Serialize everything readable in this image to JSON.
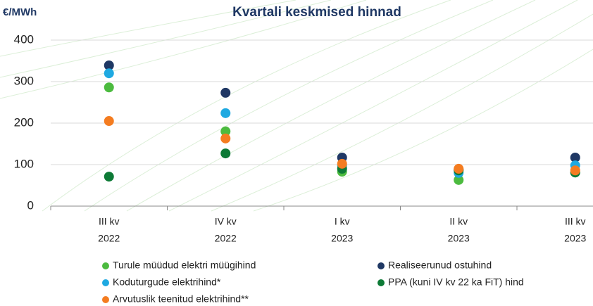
{
  "chart_data": {
    "type": "scatter",
    "title": "Kvartali keskmised hinnad",
    "y_label": "€/MWh",
    "categories": [
      [
        "III kv",
        "2022"
      ],
      [
        "IV kv",
        "2022"
      ],
      [
        "I kv",
        "2023"
      ],
      [
        "II kv",
        "2023"
      ],
      [
        "III kv",
        "2023"
      ]
    ],
    "ylim": [
      0,
      400
    ],
    "yticks": [
      0,
      100,
      200,
      300,
      400
    ],
    "grid": true,
    "series": [
      {
        "name": "Turule müüdud elektri müügihind",
        "color": "#4cbb3f",
        "values": [
          286,
          180,
          83,
          63,
          81
        ]
      },
      {
        "name": "Realiseerunud ostuhind",
        "color": "#1f3864",
        "values": [
          339,
          273,
          117,
          88,
          117
        ]
      },
      {
        "name": "Koduturgude elektrihind*",
        "color": "#1fa9e1",
        "values": [
          320,
          224,
          98,
          80,
          98
        ]
      },
      {
        "name": "PPA (kuni IV kv 22 ka FiT) hind",
        "color": "#0d7a36",
        "values": [
          71,
          127,
          90,
          86,
          81
        ]
      },
      {
        "name": "Arvutuslik teenitud elektrihind**",
        "color": "#f47c20",
        "values": [
          205,
          163,
          102,
          90,
          86
        ]
      }
    ]
  }
}
